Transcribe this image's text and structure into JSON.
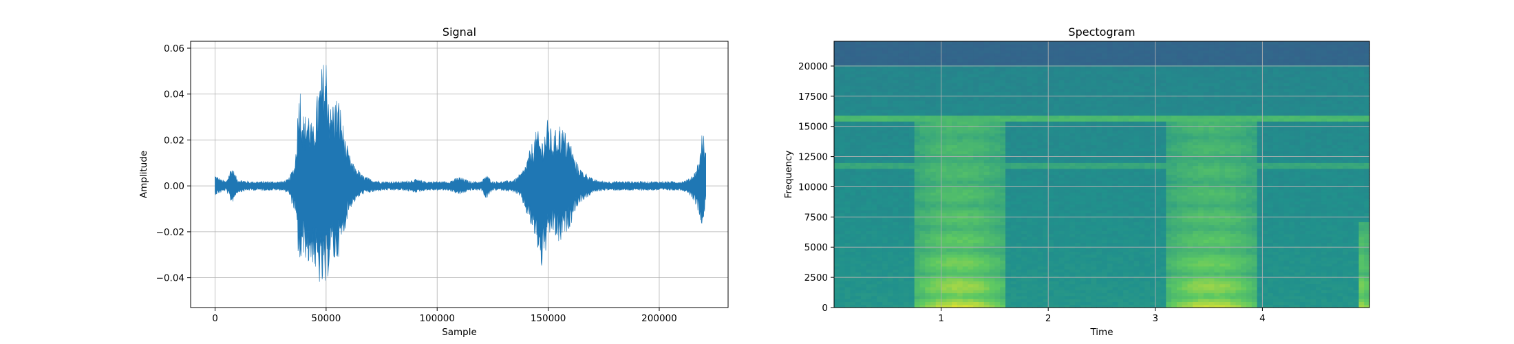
{
  "chart_data": [
    {
      "type": "line",
      "title": "Signal",
      "xlabel": "Sample",
      "ylabel": "Amplitude",
      "xlim": [
        -11000,
        231000
      ],
      "ylim": [
        -0.053,
        0.063
      ],
      "xticks": [
        0,
        50000,
        100000,
        150000,
        200000
      ],
      "xtick_labels": [
        "0",
        "50000",
        "100000",
        "150000",
        "200000"
      ],
      "yticks": [
        -0.04,
        -0.02,
        0.0,
        0.02,
        0.04,
        0.06
      ],
      "ytick_labels": [
        "−0.04",
        "−0.02",
        "0.00",
        "0.02",
        "0.04",
        "0.06"
      ],
      "grid": true,
      "color": "#1f77b4",
      "series": [
        {
          "x": [
            0,
            2500,
            5000,
            7500,
            10000,
            15000,
            20000,
            25000,
            30000,
            33000,
            36000,
            38000,
            40000,
            42000,
            44000,
            46000,
            48000,
            50000,
            52000,
            54000,
            56000,
            58000,
            60000,
            62000,
            64000,
            66000,
            68000,
            70000,
            75000,
            80000,
            85000,
            90000,
            95000,
            100000,
            105000,
            110000,
            115000,
            120000,
            122000,
            125000,
            130000,
            135000,
            138000,
            140000,
            143000,
            145000,
            147000,
            150000,
            152000,
            155000,
            157000,
            160000,
            162000,
            165000,
            168000,
            170000,
            175000,
            180000,
            185000,
            190000,
            195000,
            200000,
            205000,
            210000,
            213000,
            216000,
            218000,
            219500,
            221000
          ],
          "upper": [
            0.005,
            0.003,
            0.002,
            0.009,
            0.003,
            0.002,
            0.002,
            0.002,
            0.002,
            0.003,
            0.01,
            0.048,
            0.03,
            0.035,
            0.025,
            0.04,
            0.052,
            0.058,
            0.035,
            0.04,
            0.038,
            0.025,
            0.015,
            0.01,
            0.008,
            0.005,
            0.004,
            0.003,
            0.002,
            0.002,
            0.002,
            0.003,
            0.002,
            0.002,
            0.002,
            0.004,
            0.002,
            0.002,
            0.005,
            0.002,
            0.002,
            0.003,
            0.006,
            0.01,
            0.02,
            0.025,
            0.02,
            0.03,
            0.022,
            0.028,
            0.025,
            0.02,
            0.012,
            0.007,
            0.005,
            0.003,
            0.002,
            0.002,
            0.002,
            0.002,
            0.002,
            0.002,
            0.002,
            0.002,
            0.003,
            0.006,
            0.012,
            0.026,
            0.015
          ],
          "lower": [
            -0.004,
            -0.003,
            -0.002,
            -0.008,
            -0.003,
            -0.002,
            -0.002,
            -0.002,
            -0.002,
            -0.003,
            -0.012,
            -0.038,
            -0.03,
            -0.035,
            -0.034,
            -0.042,
            -0.045,
            -0.047,
            -0.03,
            -0.035,
            -0.03,
            -0.022,
            -0.012,
            -0.008,
            -0.006,
            -0.004,
            -0.003,
            -0.003,
            -0.002,
            -0.002,
            -0.002,
            -0.003,
            -0.002,
            -0.002,
            -0.002,
            -0.004,
            -0.002,
            -0.002,
            -0.006,
            -0.002,
            -0.002,
            -0.003,
            -0.006,
            -0.012,
            -0.02,
            -0.027,
            -0.037,
            -0.025,
            -0.02,
            -0.027,
            -0.022,
            -0.018,
            -0.011,
            -0.007,
            -0.005,
            -0.003,
            -0.002,
            -0.002,
            -0.002,
            -0.002,
            -0.002,
            -0.002,
            -0.002,
            -0.002,
            -0.003,
            -0.007,
            -0.013,
            -0.018,
            -0.008
          ]
        }
      ]
    },
    {
      "type": "heatmap",
      "title": "Spectogram",
      "xlabel": "Time",
      "ylabel": "Frequency",
      "xlim": [
        0.0,
        5.0
      ],
      "ylim": [
        0,
        22050
      ],
      "xticks": [
        1,
        2,
        3,
        4
      ],
      "xtick_labels": [
        "1",
        "2",
        "3",
        "4"
      ],
      "yticks": [
        0,
        2500,
        5000,
        7500,
        10000,
        12500,
        15000,
        17500,
        20000
      ],
      "ytick_labels": [
        "0",
        "2500",
        "5000",
        "7500",
        "10000",
        "12500",
        "15000",
        "17500",
        "20000"
      ],
      "grid": true,
      "colormap": "viridis",
      "background_level": 0.5,
      "cutoff_frequency": 20000,
      "above_cutoff_level": 0.32,
      "bands": [
        {
          "freq": 15700,
          "level": 0.66
        },
        {
          "freq": 11800,
          "level": 0.58
        }
      ],
      "events": [
        {
          "t_start": 0.75,
          "t_end": 1.6,
          "f_max": 15500,
          "peak_level": 0.92
        },
        {
          "t_start": 3.1,
          "t_end": 3.95,
          "f_max": 15500,
          "peak_level": 0.9
        },
        {
          "t_start": 4.88,
          "t_end": 5.0,
          "f_max": 7000,
          "peak_level": 0.85
        }
      ]
    }
  ]
}
